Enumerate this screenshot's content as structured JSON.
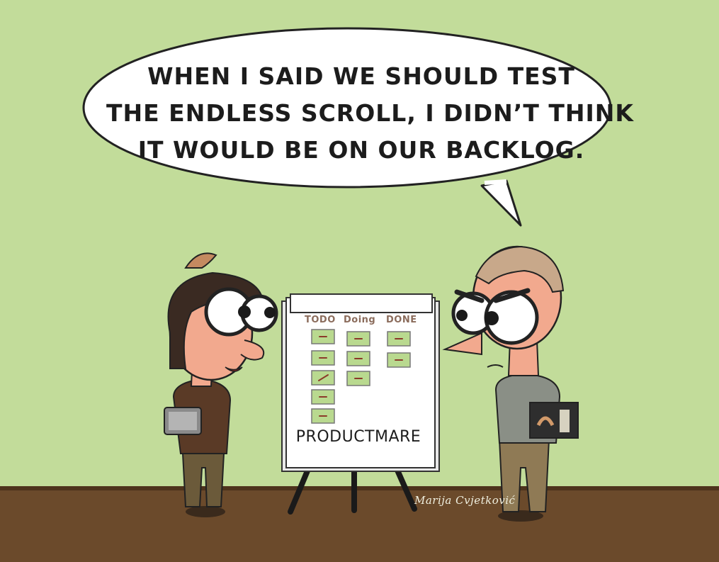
{
  "bubble": {
    "lines": [
      "WHEN I SAID WE SHOULD TEST",
      "THE ENDLESS SCROLL, I DIDN’T THINK",
      "IT WOULD BE ON OUR BACKLOG."
    ]
  },
  "board": {
    "title": "PRODUCTMARE",
    "columns": [
      "TODO",
      "Doing",
      "DONE"
    ]
  },
  "signature": "Marija Cvjetković",
  "colors": {
    "wall": "#c2dc9a",
    "floor": "#6b4a2b",
    "sticky_note": "#b9d98f",
    "skin": "#f2a98e",
    "woman_sweater": "#5a3a26",
    "man_sweater": "#8a8f86"
  }
}
